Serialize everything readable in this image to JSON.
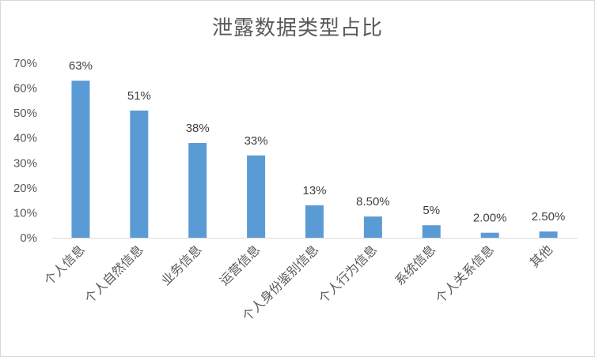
{
  "chart_data": {
    "type": "bar",
    "title": "泄露数据类型占比",
    "categories": [
      "个人信息",
      "个人自然信息",
      "业务信息",
      "运营信息",
      "个人身份鉴别信息",
      "个人行为信息",
      "系统信息",
      "个人关系信息",
      "其他"
    ],
    "values": [
      63,
      51,
      38,
      33,
      13,
      8.5,
      5,
      2,
      2.5
    ],
    "data_labels": [
      "63%",
      "51%",
      "38%",
      "33%",
      "13%",
      "8.50%",
      "5%",
      "2.00%",
      "2.50%"
    ],
    "y_ticks": [
      "0%",
      "10%",
      "20%",
      "30%",
      "40%",
      "50%",
      "60%",
      "70%"
    ],
    "ylim": [
      0,
      70
    ],
    "grid": false,
    "legend": "none",
    "colors": {
      "bar": "#5b9bd5",
      "axis": "#d9d9d9",
      "text": "#595959"
    }
  }
}
